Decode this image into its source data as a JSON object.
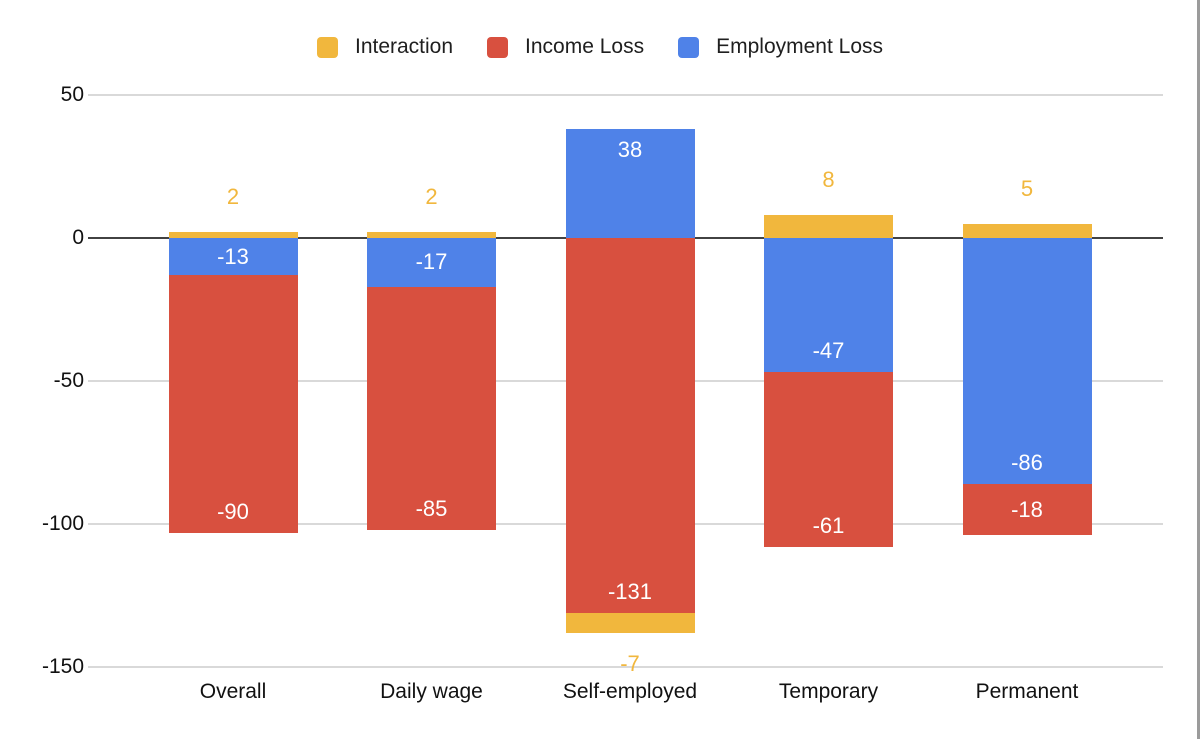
{
  "chart_data": {
    "type": "bar",
    "stacked": true,
    "title": "",
    "xlabel": "",
    "ylabel": "",
    "categories": [
      "Overall",
      "Daily wage",
      "Self-employed",
      "Temporary",
      "Permanent"
    ],
    "series": [
      {
        "name": "Interaction",
        "color": "#F1B73D",
        "values": [
          2,
          2,
          -7,
          8,
          5
        ]
      },
      {
        "name": "Income Loss",
        "color": "#D8503F",
        "values": [
          -90,
          -85,
          -131,
          -61,
          -18
        ]
      },
      {
        "name": "Employment Loss",
        "color": "#4F82E8",
        "values": [
          -13,
          -17,
          38,
          -47,
          -86
        ]
      }
    ],
    "ylim": [
      -150,
      50
    ],
    "yticks": [
      "50",
      "0",
      "-50",
      "-100",
      "-150"
    ],
    "ytick_values": [
      50,
      0,
      -50,
      -100,
      -150
    ],
    "grid": true,
    "legend_position": "top",
    "bar_label_color_inside": "#FFFFFF"
  },
  "window": {
    "background": "#FFFFFF",
    "right_border_color": "#9B9B9B",
    "gridline_color": "#D9D9D9",
    "zero_axis_color": "#424242"
  }
}
